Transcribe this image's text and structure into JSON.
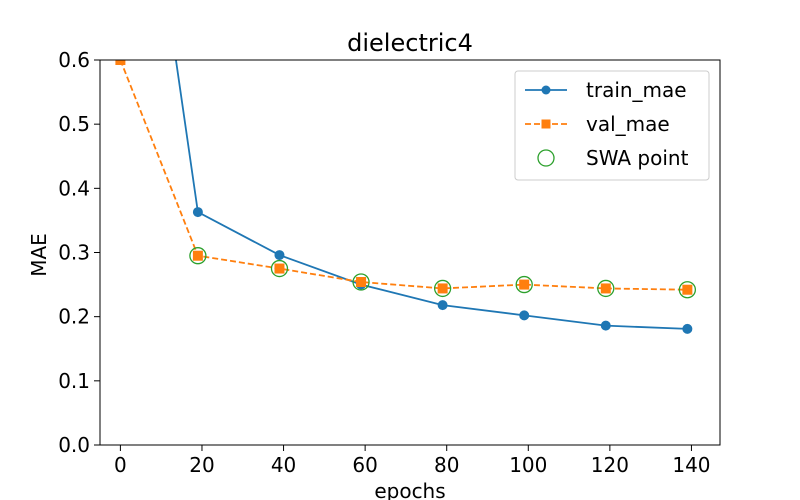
{
  "chart_data": {
    "type": "line",
    "title": "dielectric4",
    "xlabel": "epochs",
    "ylabel": "MAE",
    "xlim": [
      -5,
      147
    ],
    "ylim": [
      0,
      0.6
    ],
    "xticks": [
      0,
      20,
      40,
      60,
      80,
      100,
      120,
      140
    ],
    "yticks": [
      0.0,
      0.1,
      0.2,
      0.3,
      0.4,
      0.5,
      0.6
    ],
    "xtick_labels": [
      "0",
      "20",
      "40",
      "60",
      "80",
      "100",
      "120",
      "140"
    ],
    "ytick_labels": [
      "0.0",
      "0.1",
      "0.2",
      "0.3",
      "0.4",
      "0.5",
      "0.6"
    ],
    "grid": false,
    "legend_position": "top-right",
    "series": [
      {
        "name": "train_mae",
        "style": "solid",
        "marker": "circle",
        "color": "#1f77b4",
        "x": [
          0,
          19,
          39,
          59,
          79,
          99,
          119,
          139
        ],
        "y": [
          1.2,
          0.363,
          0.296,
          0.25,
          0.218,
          0.202,
          0.186,
          0.181
        ]
      },
      {
        "name": "val_mae",
        "style": "dashed",
        "marker": "square",
        "color": "#ff7f0e",
        "x": [
          0,
          19,
          39,
          59,
          79,
          99,
          119,
          139
        ],
        "y": [
          0.6,
          0.295,
          0.275,
          0.254,
          0.244,
          0.25,
          0.244,
          0.242
        ]
      },
      {
        "name": "SWA point",
        "style": "none",
        "marker": "open-circle",
        "color": "#2ca02c",
        "x": [
          19,
          39,
          59,
          79,
          99,
          119,
          139
        ],
        "y": [
          0.295,
          0.275,
          0.254,
          0.244,
          0.25,
          0.244,
          0.242
        ]
      }
    ]
  }
}
